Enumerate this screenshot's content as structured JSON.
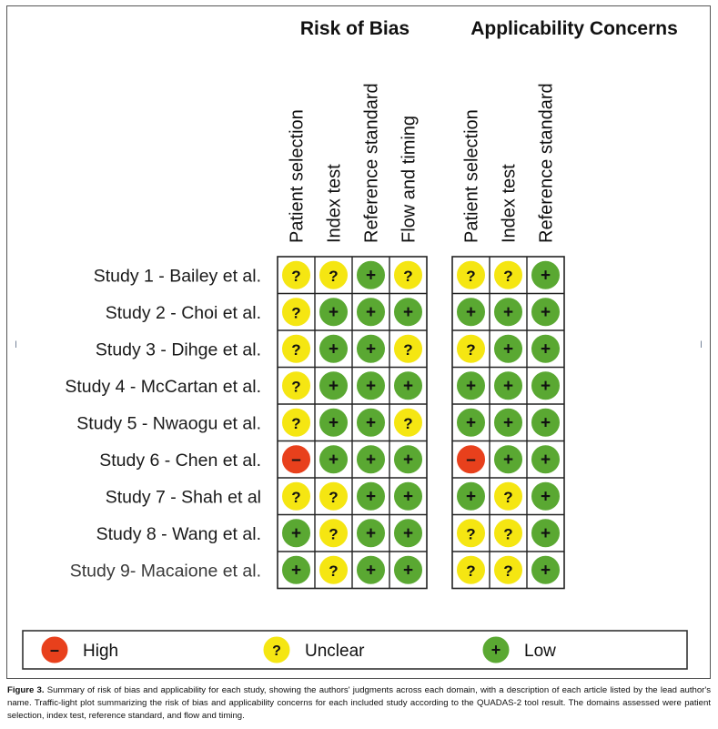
{
  "chart_data": {
    "type": "table",
    "groups": [
      {
        "title": "Risk of Bias",
        "domains": [
          "Patient selection",
          "Index test",
          "Reference standard",
          "Flow and timing"
        ]
      },
      {
        "title": "Applicability Concerns",
        "domains": [
          "Patient selection",
          "Index test",
          "Reference standard"
        ]
      }
    ],
    "studies": [
      "Study 1  - Bailey et al.",
      "Study 2 - Choi et al.",
      "Study 3 -  Dihge et al.",
      "Study 4 - McCartan et al.",
      "Study 5 - Nwaogu et al.",
      "Study 6 - Chen et al.",
      "Study 7 - Shah et al",
      "Study 8 - Wang  et al.",
      "Study 9- Macaione et al."
    ],
    "risk_of_bias": [
      [
        "unclear",
        "unclear",
        "low",
        "unclear"
      ],
      [
        "unclear",
        "low",
        "low",
        "low"
      ],
      [
        "unclear",
        "low",
        "low",
        "unclear"
      ],
      [
        "unclear",
        "low",
        "low",
        "low"
      ],
      [
        "unclear",
        "low",
        "low",
        "unclear"
      ],
      [
        "high",
        "low",
        "low",
        "low"
      ],
      [
        "unclear",
        "unclear",
        "low",
        "low"
      ],
      [
        "low",
        "unclear",
        "low",
        "low"
      ],
      [
        "low",
        "unclear",
        "low",
        "low"
      ]
    ],
    "applicability_concerns": [
      [
        "unclear",
        "unclear",
        "low"
      ],
      [
        "low",
        "low",
        "low"
      ],
      [
        "unclear",
        "low",
        "low"
      ],
      [
        "low",
        "low",
        "low"
      ],
      [
        "low",
        "low",
        "low"
      ],
      [
        "high",
        "low",
        "low"
      ],
      [
        "low",
        "unclear",
        "low"
      ],
      [
        "unclear",
        "unclear",
        "low"
      ],
      [
        "unclear",
        "unclear",
        "low"
      ]
    ],
    "legend": [
      {
        "key": "high",
        "label": "High",
        "symbol": "–",
        "color": "#e8401c"
      },
      {
        "key": "unclear",
        "label": "Unclear",
        "symbol": "?",
        "color": "#f5e612"
      },
      {
        "key": "low",
        "label": "Low",
        "symbol": "+",
        "color": "#5aa832"
      }
    ],
    "legend_placement": "bottom"
  },
  "side_ticks": {
    "left": "׀",
    "right": "׀"
  },
  "caption": {
    "label": "Figure 3.",
    "text": " Summary of risk of bias and applicability for each study, showing the authors' judgments across each domain, with a description of each article listed by the lead author's name. Traffic-light plot summarizing the risk of bias and applicability concerns for each included study according to the QUADAS-2 tool result. The domains assessed were patient selection, index test, reference standard, and flow and timing."
  }
}
